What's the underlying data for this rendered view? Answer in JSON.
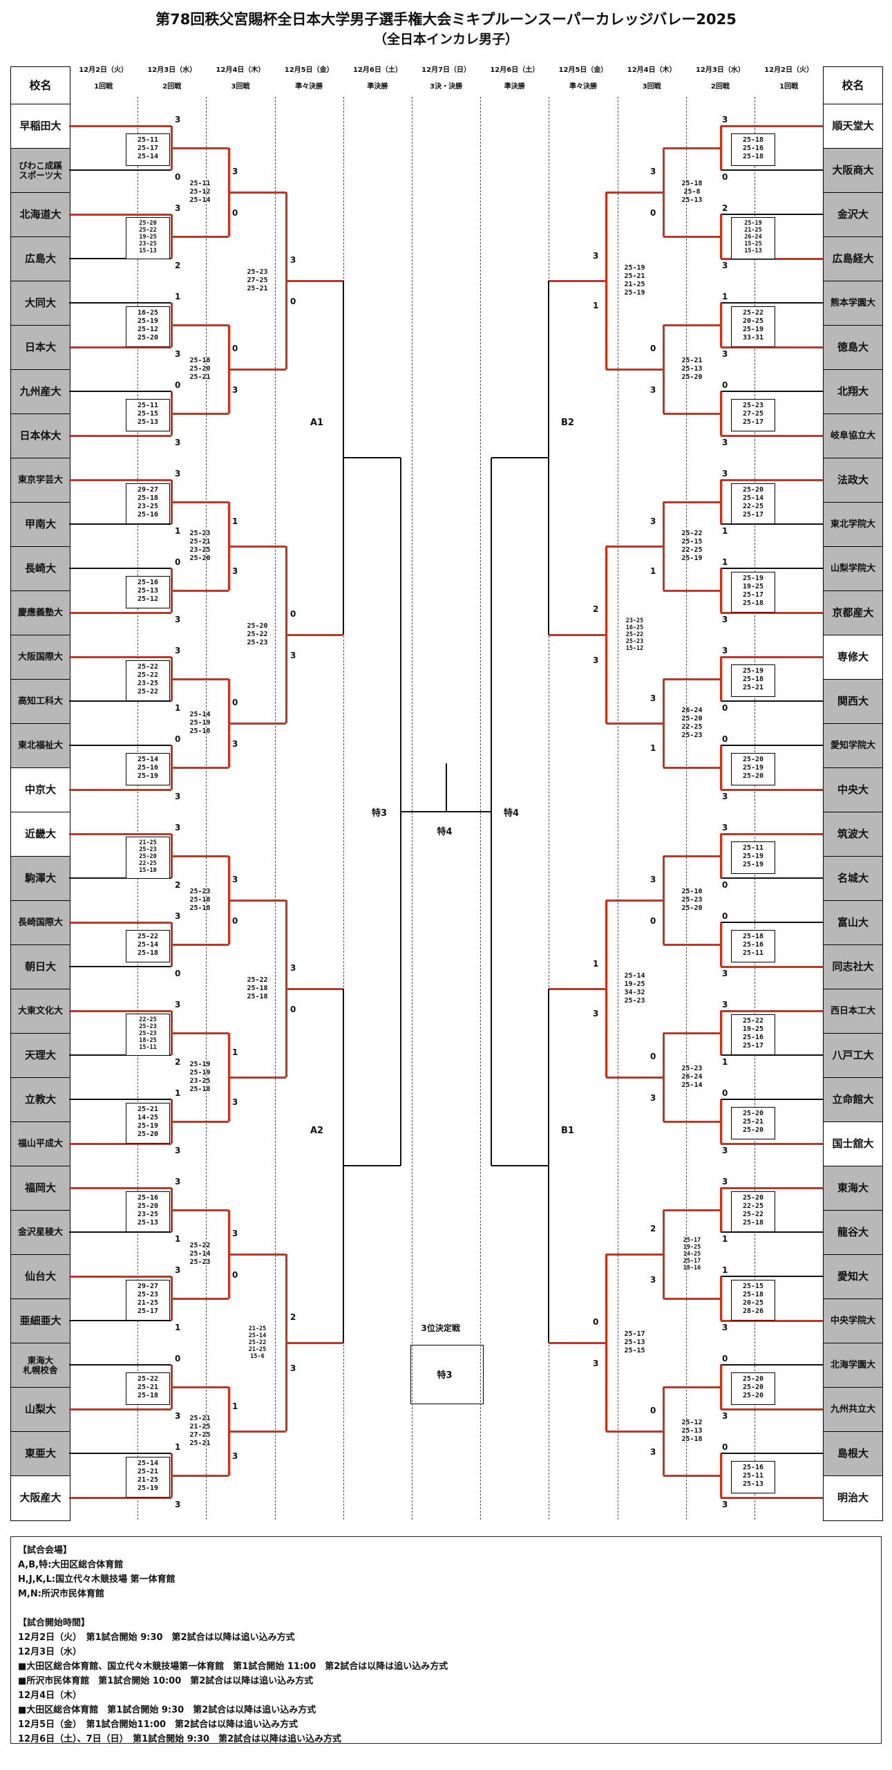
{
  "title": {
    "line1": "第78回秩父宮賜杯全日本大学男子選手権大会ミキプルーンスーパーカレッジバレー2025",
    "line2": "（全日本インカレ男子）"
  },
  "header": {
    "school_col": "校名",
    "rounds": [
      {
        "date": "12月2日（火）",
        "round": "1回戦"
      },
      {
        "date": "12月3日（水）",
        "round": "2回戦"
      },
      {
        "date": "12月4日（木）",
        "round": "3回戦"
      },
      {
        "date": "12月5日（金）",
        "round": "準々決勝"
      },
      {
        "date": "12月6日（土）",
        "round": "準決勝"
      },
      {
        "date": "12月7日（日）",
        "round": "3決・決勝"
      },
      {
        "date": "12月6日（土）",
        "round": "準決勝"
      },
      {
        "date": "12月5日（金）",
        "round": "準々決勝"
      },
      {
        "date": "12月4日（木）",
        "round": "3回戦"
      },
      {
        "date": "12月3日（水）",
        "round": "2回戦"
      },
      {
        "date": "12月2日（火）",
        "round": "1回戦"
      }
    ]
  },
  "teams_left": [
    {
      "name": "早稲田大",
      "alive": true
    },
    {
      "name": "びわこ成蹊\nスポーツ大",
      "alive": false
    },
    {
      "name": "北海道大",
      "alive": false
    },
    {
      "name": "広島大",
      "alive": false
    },
    {
      "name": "大同大",
      "alive": false
    },
    {
      "name": "日本大",
      "alive": false
    },
    {
      "name": "九州産大",
      "alive": false
    },
    {
      "name": "日本体大",
      "alive": false
    },
    {
      "name": "東京学芸大",
      "alive": false
    },
    {
      "name": "甲南大",
      "alive": false
    },
    {
      "name": "長崎大",
      "alive": false
    },
    {
      "name": "慶應義塾大",
      "alive": false
    },
    {
      "name": "大阪国際大",
      "alive": false
    },
    {
      "name": "高知工科大",
      "alive": false
    },
    {
      "name": "東北福祉大",
      "alive": false
    },
    {
      "name": "中京大",
      "alive": true
    },
    {
      "name": "近畿大",
      "alive": true
    },
    {
      "name": "駒澤大",
      "alive": false
    },
    {
      "name": "長崎国際大",
      "alive": false
    },
    {
      "name": "朝日大",
      "alive": false
    },
    {
      "name": "大東文化大",
      "alive": false
    },
    {
      "name": "天理大",
      "alive": false
    },
    {
      "name": "立教大",
      "alive": false
    },
    {
      "name": "福山平成大",
      "alive": false
    },
    {
      "name": "福岡大",
      "alive": false
    },
    {
      "name": "金沢星稜大",
      "alive": false
    },
    {
      "name": "仙台大",
      "alive": false
    },
    {
      "name": "亜細亜大",
      "alive": false
    },
    {
      "name": "東海大\n札幌校舎",
      "alive": false
    },
    {
      "name": "山梨大",
      "alive": false
    },
    {
      "name": "東亜大",
      "alive": false
    },
    {
      "name": "大阪産大",
      "alive": true
    }
  ],
  "teams_right": [
    {
      "name": "順天堂大",
      "alive": true
    },
    {
      "name": "大阪商大",
      "alive": false
    },
    {
      "name": "金沢大",
      "alive": false
    },
    {
      "name": "広島経大",
      "alive": false
    },
    {
      "name": "熊本学園大",
      "alive": false
    },
    {
      "name": "徳島大",
      "alive": false
    },
    {
      "name": "北翔大",
      "alive": false
    },
    {
      "name": "岐阜協立大",
      "alive": false
    },
    {
      "name": "法政大",
      "alive": false
    },
    {
      "name": "東北学院大",
      "alive": false
    },
    {
      "name": "山梨学院大",
      "alive": false
    },
    {
      "name": "京都産大",
      "alive": false
    },
    {
      "name": "専修大",
      "alive": true
    },
    {
      "name": "関西大",
      "alive": false
    },
    {
      "name": "愛知学院大",
      "alive": false
    },
    {
      "name": "中央大",
      "alive": false
    },
    {
      "name": "筑波大",
      "alive": false
    },
    {
      "name": "名城大",
      "alive": false
    },
    {
      "name": "富山大",
      "alive": false
    },
    {
      "name": "同志社大",
      "alive": false
    },
    {
      "name": "西日本工大",
      "alive": false
    },
    {
      "name": "八戸工大",
      "alive": false
    },
    {
      "name": "立命館大",
      "alive": false
    },
    {
      "name": "国士舘大",
      "alive": true
    },
    {
      "name": "東海大",
      "alive": false
    },
    {
      "name": "龍谷大",
      "alive": false
    },
    {
      "name": "愛知大",
      "alive": false
    },
    {
      "name": "中央学院大",
      "alive": false
    },
    {
      "name": "北海学園大",
      "alive": false
    },
    {
      "name": "九州共立大",
      "alive": false
    },
    {
      "name": "島根大",
      "alive": false
    },
    {
      "name": "明治大",
      "alive": true
    }
  ],
  "bracket": {
    "left": {
      "r1": [
        {
          "s": "25-11\n25-17\n25-14",
          "c": [
            3,
            0
          ]
        },
        {
          "s": "25-20\n25-22\n19-25\n23-25\n15-13",
          "c": [
            3,
            2
          ]
        },
        {
          "s": "16-25\n25-19\n25-12\n25-20",
          "c": [
            1,
            3
          ]
        },
        {
          "s": "25-11\n25-15\n25-13",
          "c": [
            0,
            3
          ]
        },
        {
          "s": "29-27\n25-18\n23-25\n25-16",
          "c": [
            3,
            1
          ]
        },
        {
          "s": "25-16\n25-13\n25-12",
          "c": [
            0,
            3
          ]
        },
        {
          "s": "25-22\n25-22\n23-25\n25-22",
          "c": [
            3,
            1
          ]
        },
        {
          "s": "25-14\n25-16\n25-19",
          "c": [
            0,
            3
          ]
        },
        {
          "s": "21-25\n25-23\n25-20\n22-25\n15-10",
          "c": [
            3,
            2
          ]
        },
        {
          "s": "25-22\n25-14\n25-18",
          "c": [
            3,
            0
          ]
        },
        {
          "s": "22-25\n25-23\n25-23\n18-25\n15-11",
          "c": [
            3,
            2
          ]
        },
        {
          "s": "25-21\n14-25\n25-19\n25-20",
          "c": [
            1,
            3
          ]
        },
        {
          "s": "25-16\n25-20\n23-25\n25-13",
          "c": [
            3,
            1
          ]
        },
        {
          "s": "29-27\n25-23\n21-25\n25-17",
          "c": [
            3,
            1
          ]
        },
        {
          "s": "25-22\n25-21\n25-18",
          "c": [
            0,
            3
          ]
        },
        {
          "s": "25-14\n25-21\n21-25\n25-19",
          "c": [
            1,
            3
          ]
        }
      ],
      "r2": [
        {
          "s": "25-11\n25-12\n25-14",
          "c": [
            3,
            0
          ]
        },
        {
          "s": "25-18\n25-20\n25-21",
          "c": [
            0,
            3
          ]
        },
        {
          "s": "25-23\n25-21\n23-25\n25-20",
          "c": [
            1,
            3
          ]
        },
        {
          "s": "25-14\n25-19\n25-18",
          "c": [
            0,
            3
          ]
        },
        {
          "s": "25-23\n25-18\n25-18",
          "c": [
            3,
            0
          ]
        },
        {
          "s": "25-19\n25-19\n23-25\n25-18",
          "c": [
            1,
            3
          ]
        },
        {
          "s": "25-22\n25-14\n25-23",
          "c": [
            3,
            0
          ]
        },
        {
          "s": "25-21\n21-25\n27-25\n25-21",
          "c": [
            1,
            3
          ]
        }
      ],
      "r3": [
        {
          "s": "25-23\n27-25\n25-21",
          "c": [
            3,
            0
          ]
        },
        {
          "s": "25-20\n25-22\n25-23",
          "c": [
            0,
            3
          ]
        },
        {
          "s": "25-22\n25-18\n25-18",
          "c": [
            3,
            0
          ]
        },
        {
          "s": "21-25\n25-14\n25-22\n21-25\n15-6",
          "c": [
            2,
            3
          ]
        }
      ],
      "qf_labels": [
        "A1",
        "A2"
      ]
    },
    "right": {
      "r1": [
        {
          "s": "25-18\n25-16\n25-18",
          "c": [
            3,
            0
          ]
        },
        {
          "s": "25-19\n21-25\n26-24\n15-25\n15-13",
          "c": [
            2,
            3
          ]
        },
        {
          "s": "25-22\n20-25\n25-19\n33-31",
          "c": [
            1,
            3
          ]
        },
        {
          "s": "25-23\n27-25\n25-17",
          "c": [
            0,
            3
          ]
        },
        {
          "s": "25-20\n25-14\n22-25\n25-17",
          "c": [
            3,
            1
          ]
        },
        {
          "s": "25-19\n19-25\n25-17\n25-18",
          "c": [
            1,
            3
          ]
        },
        {
          "s": "25-19\n25-18\n25-21",
          "c": [
            3,
            0
          ]
        },
        {
          "s": "25-20\n25-19\n25-20",
          "c": [
            0,
            3
          ]
        },
        {
          "s": "25-11\n25-19\n25-19",
          "c": [
            3,
            0
          ]
        },
        {
          "s": "25-18\n25-16\n25-11",
          "c": [
            0,
            3
          ]
        },
        {
          "s": "25-22\n19-25\n25-16\n25-17",
          "c": [
            3,
            1
          ]
        },
        {
          "s": "25-20\n25-21\n25-20",
          "c": [
            0,
            3
          ]
        },
        {
          "s": "25-20\n22-25\n25-22\n25-18",
          "c": [
            3,
            1
          ]
        },
        {
          "s": "25-15\n25-18\n20-25\n28-26",
          "c": [
            1,
            3
          ]
        },
        {
          "s": "25-20\n25-20\n25-20",
          "c": [
            0,
            3
          ]
        },
        {
          "s": "25-16\n25-11\n25-13",
          "c": [
            0,
            3
          ]
        }
      ],
      "r2": [
        {
          "s": "25-18\n25-8\n25-13",
          "c": [
            3,
            0
          ]
        },
        {
          "s": "25-21\n25-13\n25-20",
          "c": [
            0,
            3
          ]
        },
        {
          "s": "25-22\n25-15\n22-25\n25-19",
          "c": [
            3,
            1
          ]
        },
        {
          "s": "26-24\n25-20\n22-25\n25-23",
          "c": [
            3,
            1
          ]
        },
        {
          "s": "25-10\n25-23\n25-20",
          "c": [
            3,
            0
          ]
        },
        {
          "s": "25-23\n26-24\n25-14",
          "c": [
            0,
            3
          ]
        },
        {
          "s": "25-17\n19-25\n14-25\n25-17\n18-16",
          "c": [
            2,
            3
          ]
        },
        {
          "s": "25-12\n25-13\n25-18",
          "c": [
            0,
            3
          ]
        }
      ],
      "r3": [
        {
          "s": "25-19\n25-21\n21-25\n25-19",
          "c": [
            3,
            1
          ]
        },
        {
          "s": "23-25\n16-25\n25-22\n25-23\n15-12",
          "c": [
            2,
            3
          ]
        },
        {
          "s": "25-14\n19-25\n34-32\n25-23",
          "c": [
            1,
            3
          ]
        },
        {
          "s": "25-17\n25-13\n25-15",
          "c": [
            0,
            3
          ]
        }
      ],
      "qf_labels": [
        "B2",
        "B1"
      ]
    }
  },
  "center": {
    "sf_left": "特3",
    "sf_right": "特4",
    "final": "特4",
    "third_title": "3位決定戦",
    "third_label": "特3"
  },
  "footer": {
    "lines": [
      "【試合会場】",
      "A,B,特:大田区総合体育館",
      "H,J,K,L:国立代々木競技場 第一体育館",
      "M,N:所沢市民体育館",
      "",
      "【試合開始時間】",
      "12月2日（火）　第1試合開始 9:30　第2試合は以降は追い込み方式",
      "12月3日（水）",
      "■大田区総合体育館、国立代々木競技場第一体育館　第1試合開始 11:00　第2試合は以降は追い込み方式",
      "■所沢市民体育館　第1試合開始 10:00　第2試合は以降は追い込み方式",
      "12月4日（木）",
      "■大田区総合体育館　第1試合開始 9:30　第2試合は以降は追い込み方式",
      "12月5日（金）　第1試合開始11:00　第2試合は以降は追い込み方式",
      "12月6日（土）、7日（日）　第1試合開始 9:30　第2試合は以降は追い込み方式"
    ]
  }
}
